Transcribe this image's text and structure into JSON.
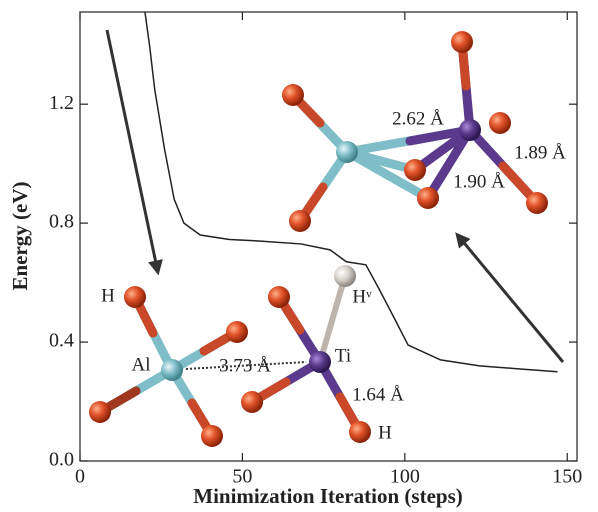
{
  "chart_data": {
    "type": "line",
    "xlabel": "Minimization Iteration (steps)",
    "ylabel": "Energy (eV)",
    "x": [
      20,
      21.5,
      23,
      26,
      29,
      32,
      37,
      46,
      55,
      68,
      77,
      82,
      88,
      92,
      97,
      101,
      111,
      123,
      135,
      147
    ],
    "series": [
      {
        "color": "#222222",
        "values": [
          1.51,
          1.39,
          1.25,
          1.05,
          0.88,
          0.8,
          0.76,
          0.745,
          0.74,
          0.73,
          0.71,
          0.67,
          0.66,
          0.58,
          0.475,
          0.39,
          0.34,
          0.32,
          0.31,
          0.3
        ]
      }
    ],
    "xlim": [
      0,
      153
    ],
    "ylim": [
      0,
      1.51
    ],
    "xticks": [
      0,
      50,
      100,
      150
    ],
    "yticks": [
      {
        "value": 0,
        "label": "0.0"
      },
      0.4,
      0.8,
      1.2
    ],
    "annotations": [
      "H",
      "Al",
      "3.73 Å",
      "Ti",
      "Hᵛ",
      "1.64 Å",
      "H",
      "2.62 Å",
      "1.90 Å",
      "1.89 Å"
    ]
  }
}
